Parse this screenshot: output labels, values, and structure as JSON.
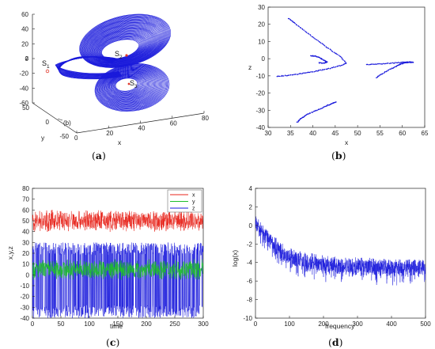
{
  "chart_data": [
    {
      "type": "scatter",
      "panel": "a",
      "subtype": "3d-line",
      "xlabel": "x",
      "ylabel": "y",
      "zlabel": "z",
      "xlim": [
        0,
        80
      ],
      "ylim": [
        -50,
        50
      ],
      "zlim": [
        -60,
        60
      ],
      "x_ticks": [
        "0",
        "20",
        "40",
        "60",
        "80"
      ],
      "y_ticks": [
        "50",
        "0",
        "-50"
      ],
      "z_ticks": [
        "60",
        "40",
        "20",
        "0",
        "-20",
        "-40",
        "-60"
      ],
      "annotations": [
        {
          "text": "S",
          "sub": "1",
          "color": "#e23b2e"
        },
        {
          "text": "S",
          "sub": "2",
          "color": "#e23b2e"
        },
        {
          "text": "S",
          "sub": "3",
          "color": "#e23b2e"
        },
        {
          "text": "(b)"
        }
      ],
      "series": [
        {
          "color": "#1a1adb"
        }
      ]
    },
    {
      "type": "scatter",
      "panel": "b",
      "xlabel": "x",
      "ylabel": "z",
      "xlim": [
        30,
        65
      ],
      "ylim": [
        -40,
        30
      ],
      "x_ticks": [
        30,
        35,
        40,
        45,
        50,
        55,
        60,
        65
      ],
      "y_ticks": [
        -40,
        -30,
        -20,
        -10,
        0,
        10,
        20,
        30
      ],
      "series": [
        {
          "color": "#1a1adb",
          "segments": [
            {
              "x": [
                34.6,
                36.0,
                38.0,
                40.0,
                42.0,
                44.0,
                46.0,
                47.6
              ],
              "y": [
                23.5,
                20.5,
                16.5,
                12.5,
                8.8,
                5.0,
                1.5,
                -2.5
              ]
            },
            {
              "x": [
                32.0,
                34.0,
                36.0,
                38.0,
                40.0,
                42.0,
                44.0,
                46.0,
                47.6
              ],
              "y": [
                -10.3,
                -9.8,
                -9.2,
                -8.4,
                -7.6,
                -6.6,
                -5.5,
                -4.2,
                -2.5
              ]
            },
            {
              "x": [
                39.5,
                40.5,
                41.5,
                42.5,
                43.2,
                42.5,
                41.2
              ],
              "y": [
                1.8,
                1.5,
                0.6,
                -1.0,
                -2.0,
                -2.6,
                -2.4
              ]
            },
            {
              "x": [
                36.5,
                37.5,
                38.5,
                40.0,
                41.5,
                43.0,
                44.2,
                45.3
              ],
              "y": [
                -37.0,
                -34.5,
                -32.8,
                -31.0,
                -29.3,
                -27.5,
                -26.2,
                -25.0
              ]
            },
            {
              "x": [
                52.0,
                54.0,
                56.0,
                58.0,
                60.0,
                61.5,
                62.5
              ],
              "y": [
                -3.5,
                -3.2,
                -2.9,
                -2.5,
                -2.1,
                -1.9,
                -2.0
              ]
            },
            {
              "x": [
                54.2,
                55.5,
                57.0,
                58.5,
                59.5,
                60.3,
                61.5,
                62.5
              ],
              "y": [
                -11.0,
                -8.8,
                -6.5,
                -4.6,
                -3.3,
                -2.6,
                -2.1,
                -2.0
              ]
            }
          ]
        }
      ]
    },
    {
      "type": "line",
      "panel": "c",
      "xlabel": "time",
      "ylabel": "x,y,z",
      "xlim": [
        0,
        300
      ],
      "ylim": [
        -40,
        80
      ],
      "x_ticks": [
        0,
        50,
        100,
        150,
        200,
        250,
        300
      ],
      "y_ticks": [
        -40,
        -30,
        -20,
        -10,
        0,
        10,
        20,
        30,
        40,
        50,
        60,
        70,
        80
      ],
      "series": [
        {
          "name": "x",
          "color": "#e8241b",
          "mean": 50,
          "range": [
            40,
            62
          ]
        },
        {
          "name": "y",
          "color": "#1fbf2a",
          "mean": 5,
          "range": [
            -5,
            15
          ]
        },
        {
          "name": "z",
          "color": "#1a1adb",
          "mean": 3,
          "range": [
            -40,
            30
          ]
        }
      ]
    },
    {
      "type": "line",
      "panel": "d",
      "xlabel": "frequency",
      "ylabel": "log(x)",
      "xlim": [
        0,
        500
      ],
      "ylim": [
        -10,
        4
      ],
      "x_ticks": [
        0,
        100,
        200,
        300,
        400,
        500
      ],
      "y_ticks": [
        -10,
        -8,
        -6,
        -4,
        -2,
        0,
        2,
        4
      ],
      "series": [
        {
          "color": "#1a1adb",
          "x": [
            0,
            10,
            25,
            50,
            75,
            100,
            150,
            200,
            250,
            300,
            350,
            400,
            450,
            500
          ],
          "y": [
            0.8,
            0.3,
            -0.4,
            -1.4,
            -2.2,
            -2.9,
            -3.4,
            -3.7,
            -3.8,
            -3.9,
            -3.95,
            -4.0,
            -4.0,
            -4.0
          ]
        }
      ]
    }
  ],
  "panel_labels": {
    "a": "(a)",
    "b": "(b)",
    "c": "(c)",
    "d": "(d)"
  }
}
